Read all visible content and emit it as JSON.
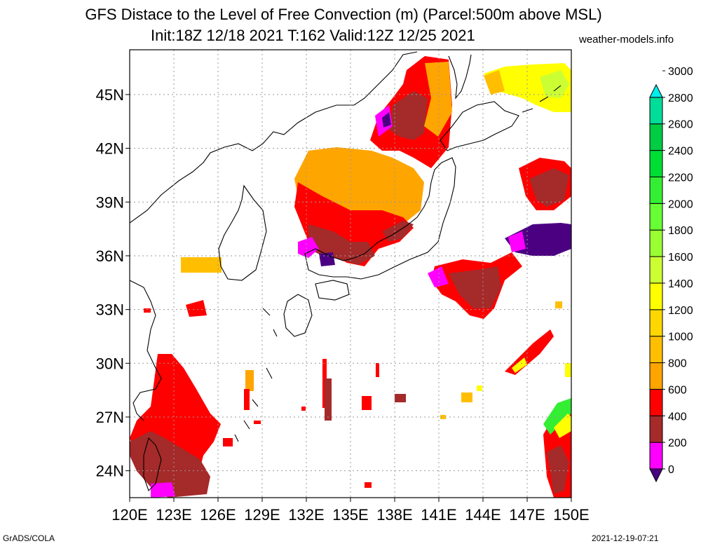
{
  "title_line1": "GFS Distace to the Level of Free Convection (m) (Parcel:500m above MSL)",
  "title_line2": "Init:18Z 12/18 2021 T:162 Valid:12Z 12/25 2021",
  "site": "weather-models.info",
  "footer_left": "GrADS/COLA",
  "footer_right": "2021-12-19-07:21",
  "map": {
    "lon_range": [
      120,
      150
    ],
    "lat_range": [
      22.5,
      47.5
    ],
    "lon_ticks": [
      "120E",
      "123E",
      "126E",
      "129E",
      "132E",
      "135E",
      "138E",
      "141E",
      "144E",
      "147E",
      "150E"
    ],
    "lat_ticks": [
      "24N",
      "27N",
      "30N",
      "33N",
      "36N",
      "39N",
      "42N",
      "45N"
    ],
    "lat_tick_values": [
      24,
      27,
      30,
      33,
      36,
      39,
      42,
      45
    ],
    "lon_tick_values": [
      120,
      123,
      126,
      129,
      132,
      135,
      138,
      141,
      144,
      147,
      150
    ]
  },
  "colorbar": {
    "labels": [
      "0",
      "200",
      "400",
      "600",
      "800",
      "1000",
      "1200",
      "1400",
      "1600",
      "1800",
      "2000",
      "2200",
      "2400",
      "2600",
      "2800",
      "3000"
    ],
    "colors": [
      "#4b0082",
      "#ff00ff",
      "#a52a2a",
      "#ff0000",
      "#ffa500",
      "#ffbf00",
      "#ffd700",
      "#ffff00",
      "#ccff33",
      "#99ff33",
      "#66ff33",
      "#33ee33",
      "#00dd33",
      "#00cc44",
      "#00dd99",
      "#00eeee"
    ]
  }
}
